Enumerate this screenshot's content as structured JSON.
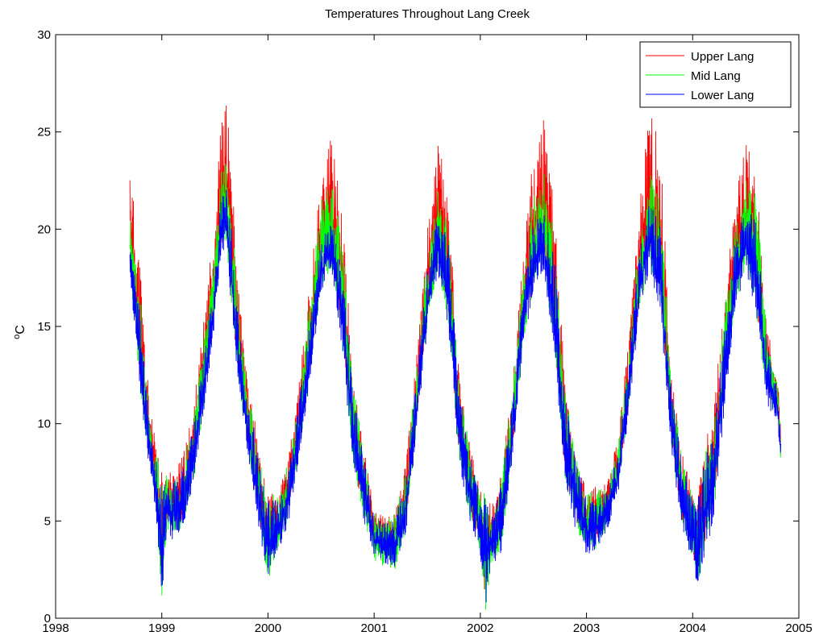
{
  "chart_data": {
    "type": "line",
    "title": "Temperatures Throughout Lang Creek",
    "xlabel": "",
    "ylabel": "oC",
    "ylabel_base": "C",
    "ylabel_superscript": "o",
    "xlim": [
      1998,
      2005
    ],
    "ylim": [
      0,
      30
    ],
    "xticks": [
      1998,
      1999,
      2000,
      2001,
      2002,
      2003,
      2004,
      2005
    ],
    "yticks": [
      0,
      5,
      10,
      15,
      20,
      25,
      30
    ],
    "grid": false,
    "legend_position": "top-right",
    "colors": {
      "Upper Lang": "#ff0000",
      "Mid Lang": "#00ff00",
      "Lower Lang": "#0000ff"
    },
    "envelope": {
      "x": [
        1998.7,
        1998.75,
        1998.8,
        1998.85,
        1998.9,
        1998.95,
        1999.0,
        1999.05,
        1999.1,
        1999.2,
        1999.3,
        1999.4,
        1999.5,
        1999.55,
        1999.6,
        1999.65,
        1999.7,
        1999.8,
        1999.9,
        1999.95,
        2000.0,
        2000.1,
        2000.2,
        2000.3,
        2000.4,
        2000.5,
        2000.6,
        2000.7,
        2000.8,
        2000.9,
        2001.0,
        2001.1,
        2001.2,
        2001.3,
        2001.4,
        2001.5,
        2001.6,
        2001.7,
        2001.8,
        2001.9,
        2002.0,
        2002.05,
        2002.1,
        2002.2,
        2002.3,
        2002.4,
        2002.5,
        2002.6,
        2002.7,
        2002.8,
        2002.9,
        2003.0,
        2003.1,
        2003.2,
        2003.3,
        2003.4,
        2003.5,
        2003.6,
        2003.7,
        2003.8,
        2003.9,
        2004.0,
        2004.05,
        2004.1,
        2004.2,
        2004.3,
        2004.4,
        2004.5,
        2004.6,
        2004.7,
        2004.8,
        2004.83
      ],
      "upper_max": [
        23.7,
        20.5,
        18.2,
        13.5,
        10.5,
        8.8,
        7.6,
        7.8,
        7.6,
        8.4,
        11.0,
        15.5,
        21.0,
        25.0,
        26.8,
        24.5,
        18.5,
        12.5,
        9.5,
        7.5,
        6.5,
        6.5,
        8.5,
        12.5,
        17.5,
        23.0,
        24.8,
        21.0,
        12.5,
        9.0,
        5.5,
        5.2,
        5.5,
        8.0,
        13.5,
        20.0,
        24.5,
        22.0,
        12.5,
        9.0,
        6.5,
        6.8,
        5.8,
        7.5,
        12.0,
        18.5,
        24.0,
        26.0,
        21.0,
        12.0,
        8.5,
        6.5,
        6.8,
        7.0,
        9.5,
        14.5,
        21.5,
        26.4,
        24.0,
        12.5,
        8.5,
        6.5,
        6.5,
        8.5,
        11.0,
        16.5,
        21.5,
        24.5,
        23.0,
        15.0,
        12.5,
        9.5
      ],
      "upper_min": [
        18.5,
        15.0,
        12.0,
        9.5,
        7.5,
        5.5,
        1.2,
        5.0,
        4.5,
        5.0,
        7.5,
        11.5,
        16.0,
        19.0,
        20.0,
        17.0,
        13.5,
        9.0,
        5.5,
        4.0,
        3.5,
        4.0,
        5.5,
        9.0,
        13.0,
        17.5,
        18.5,
        14.5,
        8.0,
        5.5,
        4.0,
        3.5,
        3.5,
        5.0,
        10.0,
        15.5,
        18.5,
        15.5,
        8.5,
        5.5,
        3.8,
        0.8,
        3.0,
        4.0,
        8.5,
        14.5,
        17.5,
        18.5,
        14.0,
        7.5,
        5.0,
        4.0,
        4.0,
        5.0,
        7.0,
        11.0,
        16.5,
        18.5,
        16.0,
        9.0,
        5.0,
        3.5,
        1.5,
        3.5,
        5.5,
        11.5,
        16.5,
        18.5,
        16.0,
        11.5,
        10.5,
        8.5
      ],
      "mid_max": [
        21.0,
        18.5,
        16.5,
        12.5,
        10.0,
        8.5,
        7.4,
        7.6,
        7.4,
        8.1,
        10.5,
        14.5,
        19.5,
        23.0,
        23.5,
        22.0,
        17.5,
        12.0,
        9.3,
        7.3,
        6.4,
        6.4,
        8.2,
        12.0,
        16.5,
        21.5,
        22.5,
        20.0,
        12.2,
        8.8,
        5.4,
        5.1,
        5.4,
        7.8,
        13.0,
        19.0,
        22.0,
        20.5,
        12.2,
        8.8,
        6.4,
        6.5,
        5.7,
        7.3,
        11.5,
        17.5,
        22.0,
        23.0,
        19.5,
        11.8,
        8.4,
        6.4,
        6.6,
        6.8,
        9.2,
        14.0,
        20.0,
        23.0,
        21.5,
        12.2,
        8.4,
        6.4,
        6.4,
        8.2,
        10.5,
        15.8,
        20.5,
        23.5,
        22.0,
        14.5,
        12.2,
        9.3
      ],
      "mid_min": [
        17.8,
        14.5,
        11.6,
        9.2,
        7.2,
        5.2,
        0.6,
        4.6,
        4.2,
        4.7,
        7.2,
        11.0,
        15.5,
        18.5,
        19.5,
        16.5,
        13.2,
        8.8,
        5.2,
        3.7,
        1.9,
        3.6,
        5.2,
        8.7,
        12.6,
        17.0,
        18.0,
        14.0,
        7.8,
        5.2,
        3.0,
        2.5,
        2.4,
        4.6,
        9.7,
        15.0,
        18.0,
        15.0,
        8.2,
        5.2,
        3.4,
        0.4,
        2.7,
        3.6,
        8.2,
        14.0,
        17.0,
        18.0,
        13.6,
        7.2,
        4.6,
        3.1,
        3.5,
        4.7,
        6.7,
        10.7,
        16.0,
        18.0,
        15.5,
        8.7,
        4.7,
        3.0,
        1.1,
        3.2,
        5.2,
        11.0,
        16.0,
        18.0,
        15.5,
        11.2,
        10.2,
        8.0
      ],
      "lower_max": [
        19.0,
        17.5,
        15.8,
        12.0,
        9.6,
        8.2,
        7.2,
        7.3,
        7.2,
        7.8,
        10.0,
        13.5,
        18.0,
        21.5,
        22.3,
        20.5,
        16.5,
        11.5,
        9.0,
        7.0,
        6.2,
        6.2,
        7.8,
        11.5,
        15.5,
        19.5,
        20.5,
        18.5,
        11.8,
        8.5,
        5.2,
        4.9,
        5.2,
        7.5,
        12.5,
        18.0,
        20.8,
        19.5,
        11.8,
        8.5,
        6.2,
        6.2,
        5.5,
        7.0,
        11.0,
        16.5,
        20.5,
        21.0,
        18.5,
        11.5,
        8.1,
        6.2,
        6.3,
        6.5,
        8.8,
        13.5,
        19.0,
        21.5,
        20.0,
        11.8,
        8.1,
        6.2,
        6.2,
        7.9,
        10.0,
        15.0,
        19.5,
        21.0,
        20.5,
        14.0,
        12.0,
        9.0
      ],
      "lower_min": [
        17.5,
        14.2,
        11.3,
        9.0,
        7.0,
        5.0,
        1.0,
        4.4,
        4.0,
        4.5,
        7.0,
        10.8,
        15.2,
        18.2,
        19.2,
        16.2,
        13.0,
        8.6,
        5.0,
        3.5,
        2.2,
        3.4,
        5.0,
        8.5,
        12.4,
        16.8,
        17.8,
        13.8,
        7.6,
        5.0,
        3.2,
        2.7,
        2.6,
        4.4,
        9.5,
        14.8,
        17.8,
        14.8,
        8.0,
        5.0,
        3.2,
        0.6,
        2.5,
        3.4,
        8.0,
        13.8,
        16.8,
        17.8,
        13.4,
        7.0,
        4.4,
        3.3,
        3.3,
        4.5,
        6.5,
        10.5,
        15.8,
        17.8,
        15.3,
        8.5,
        4.5,
        2.8,
        1.3,
        3.0,
        5.0,
        10.8,
        15.8,
        17.8,
        15.3,
        11.0,
        10.0,
        7.9
      ]
    },
    "series": [
      {
        "name": "Upper Lang",
        "color": "#ff0000",
        "max_key": "upper_max",
        "min_key": "upper_min",
        "seed": 11
      },
      {
        "name": "Mid Lang",
        "color": "#00ff00",
        "max_key": "mid_max",
        "min_key": "mid_min",
        "seed": 23
      },
      {
        "name": "Lower Lang",
        "color": "#0000ff",
        "max_key": "lower_max",
        "min_key": "lower_min",
        "seed": 37
      }
    ]
  }
}
